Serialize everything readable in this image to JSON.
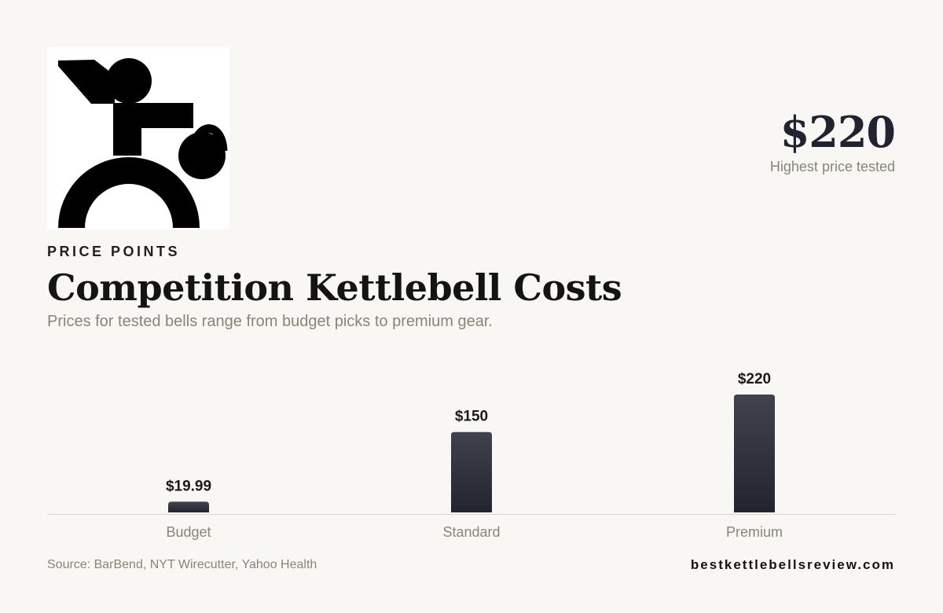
{
  "header": {
    "stat_value": "$220",
    "stat_label": "Highest price tested",
    "eyebrow": "PRICE POINTS",
    "title": "Competition Kettlebell Costs",
    "subtitle": "Prices for tested bells range from budget picks to premium gear."
  },
  "footer": {
    "source": "Source: BarBend, NYT Wirecutter, Yahoo Health",
    "site": "bestkettlebellsreview.com"
  },
  "icons": {
    "logo": "kettlebell-lifter-icon"
  },
  "colors": {
    "background": "#f9f7f3",
    "bar_top": "#40424d",
    "bar_bottom": "#22242f",
    "axis": "#d8d3cb",
    "muted_text": "#8b8378"
  },
  "chart_data": {
    "type": "bar",
    "categories": [
      "Budget",
      "Standard",
      "Premium"
    ],
    "values": [
      19.99,
      150,
      220
    ],
    "data_labels": [
      "$19.99",
      "$150",
      "$220"
    ],
    "ylim": [
      0,
      220
    ],
    "grid": false
  }
}
